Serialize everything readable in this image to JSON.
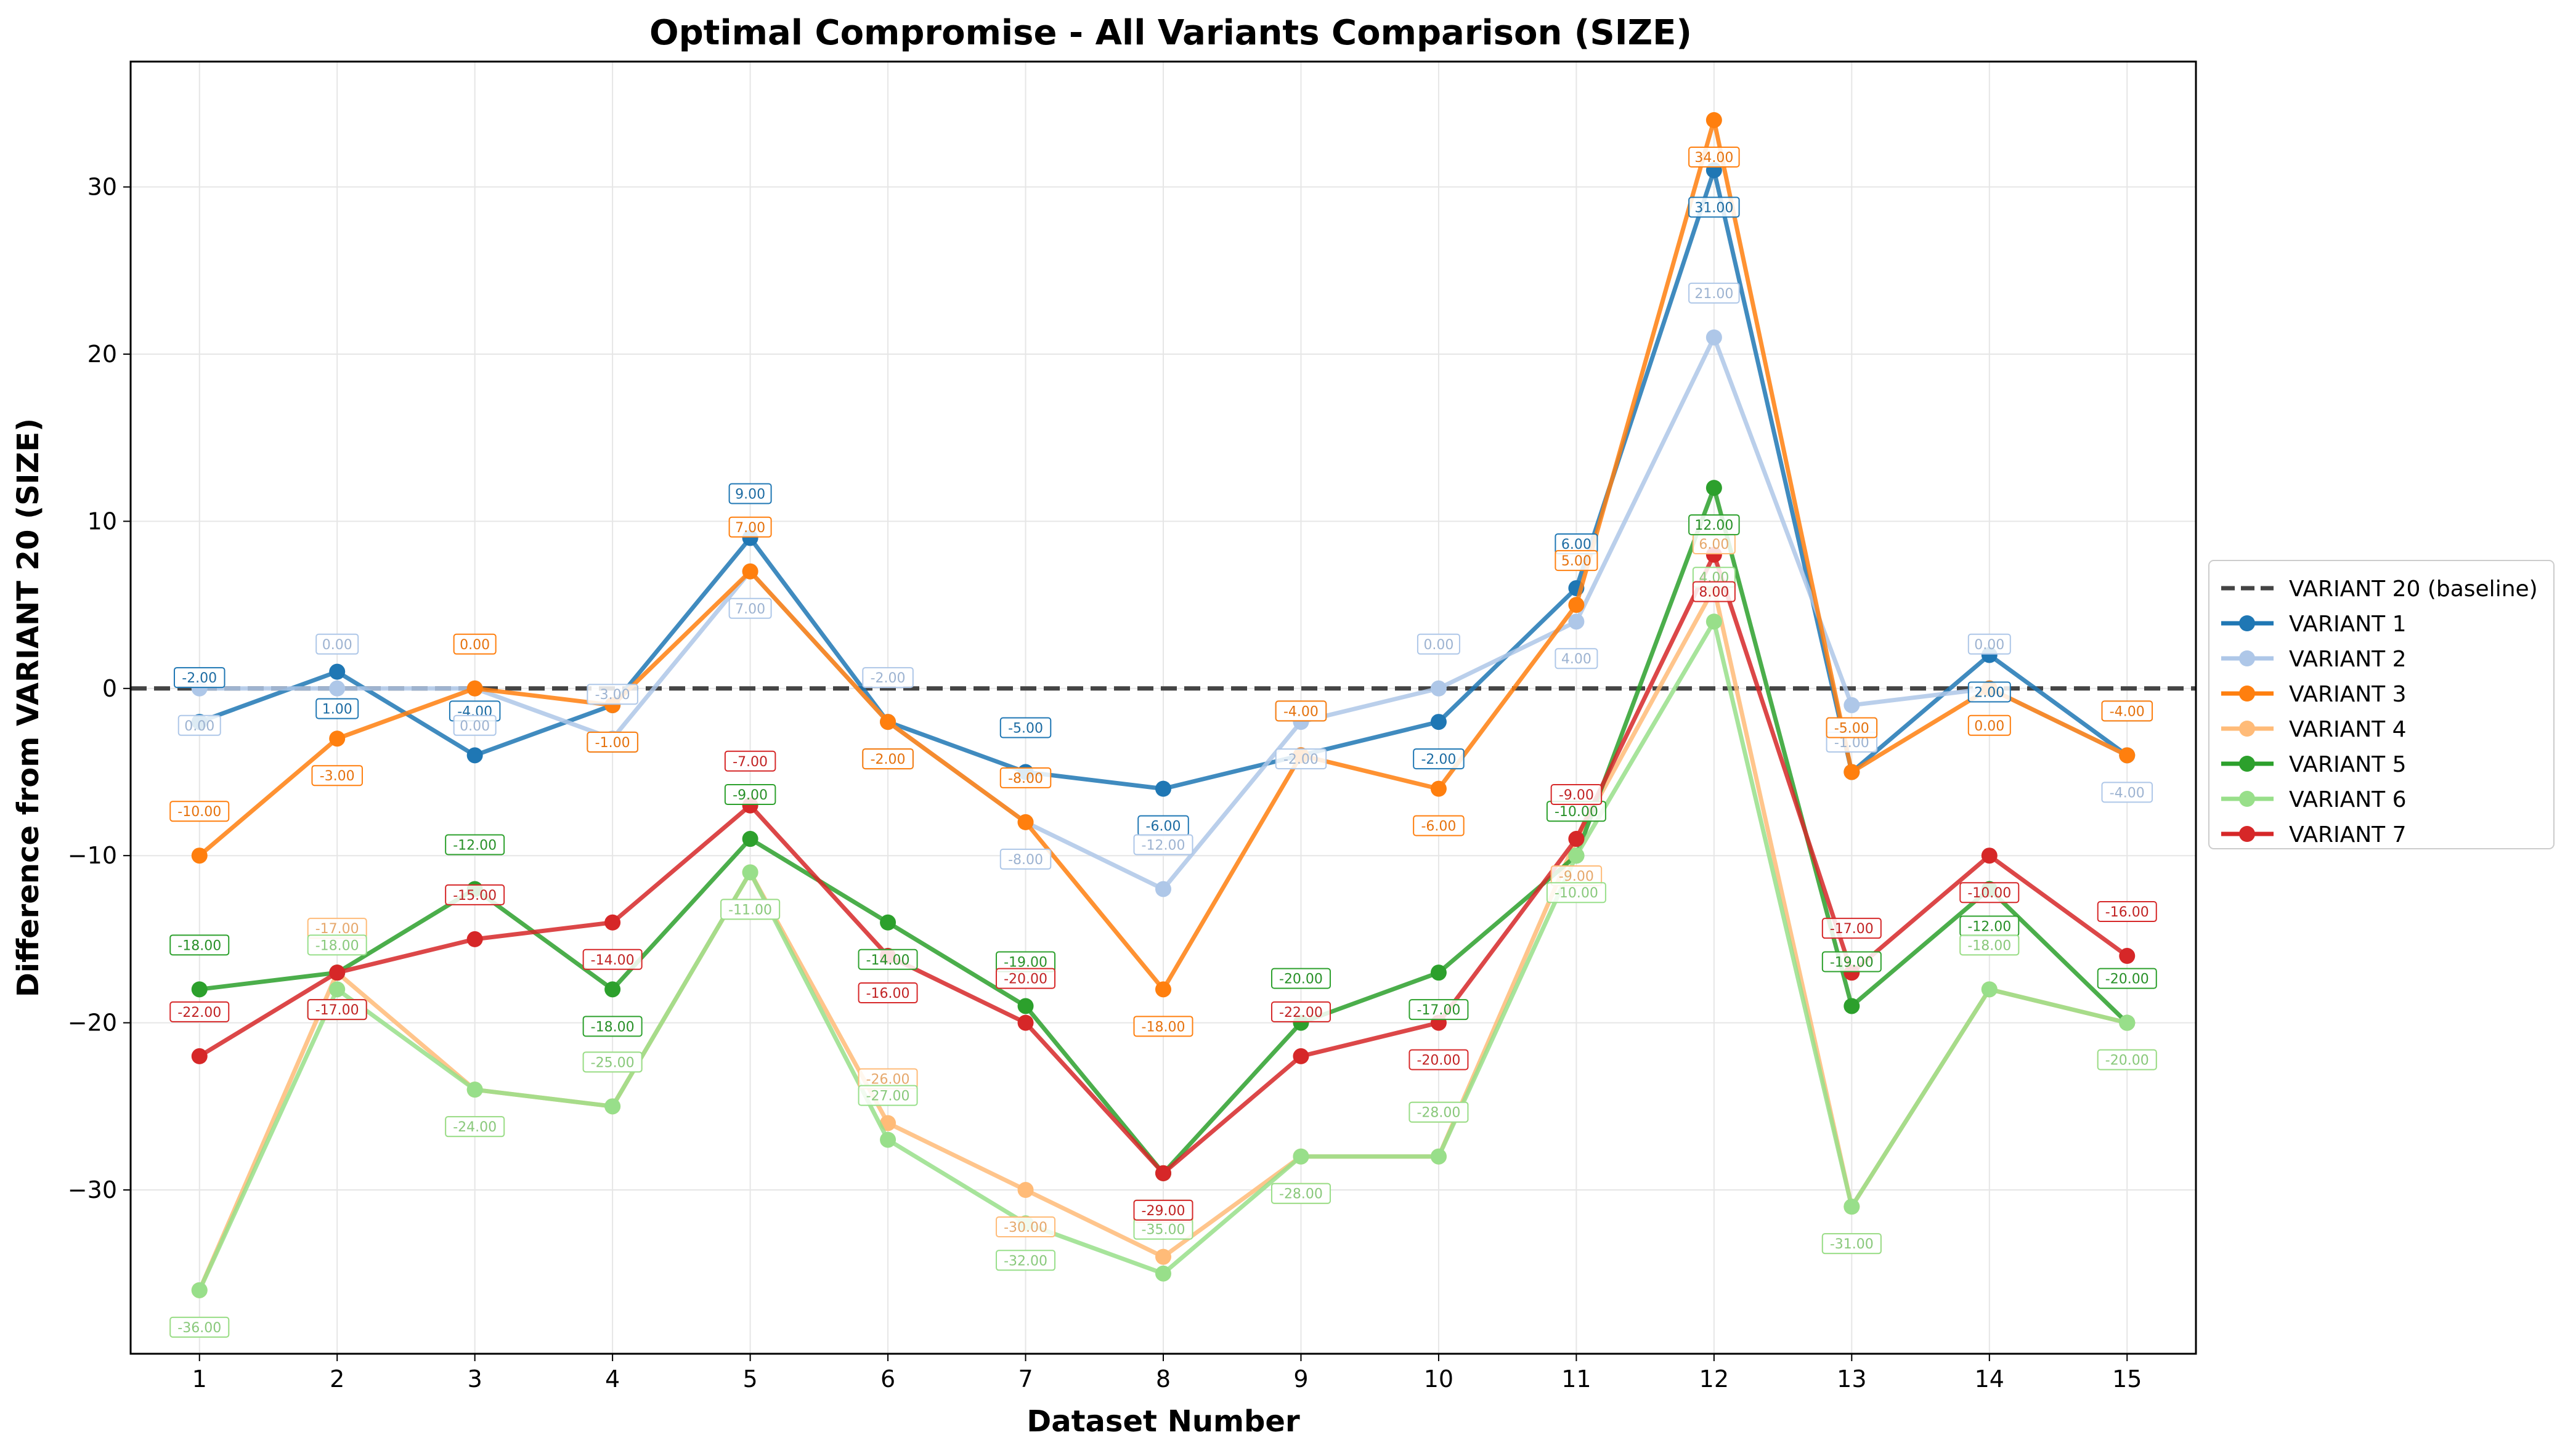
{
  "chart_data": {
    "type": "line",
    "title": "Optimal Compromise - All Variants Comparison (SIZE)",
    "xlabel": "Dataset Number",
    "ylabel": "Difference from VARIANT 20 (SIZE)",
    "x": [
      1,
      2,
      3,
      4,
      5,
      6,
      7,
      8,
      9,
      10,
      11,
      12,
      13,
      14,
      15
    ],
    "xlim": [
      0.5,
      15.5
    ],
    "ylim": [
      -39.8,
      37.5
    ],
    "yticks": [
      -30,
      -20,
      -10,
      0,
      10,
      20,
      30
    ],
    "ytick_labels": [
      "−30",
      "−20",
      "−10",
      "0",
      "10",
      "20",
      "30"
    ],
    "grid": true,
    "legend_position": "outside-right",
    "baseline": {
      "name": "VARIANT 20 (baseline)",
      "value": 0,
      "color": "#444444",
      "style": "dashed"
    },
    "series": [
      {
        "name": "VARIANT 1",
        "color": "#1f77b4",
        "values": [
          -2,
          1,
          -4,
          -1,
          9,
          -2,
          -5,
          -6,
          -4,
          -2,
          6,
          31,
          -5,
          2,
          -4
        ]
      },
      {
        "name": "VARIANT 2",
        "color": "#aec7e8",
        "values": [
          0,
          0,
          0,
          -3,
          7,
          -2,
          -8,
          -12,
          -2,
          0,
          4,
          21,
          -1,
          0,
          -4
        ]
      },
      {
        "name": "VARIANT 3",
        "color": "#ff7f0e",
        "values": [
          -10,
          -3,
          0,
          -1,
          7,
          -2,
          -8,
          -18,
          -4,
          -6,
          5,
          34,
          -5,
          0,
          -4
        ]
      },
      {
        "name": "VARIANT 4",
        "color": "#ffbb78",
        "values": [
          -36,
          -17,
          -24,
          -25,
          -11,
          -26,
          -30,
          -34,
          -28,
          -28,
          -9,
          6,
          -31,
          -18,
          -20
        ]
      },
      {
        "name": "VARIANT 5",
        "color": "#2ca02c",
        "values": [
          -18,
          -17,
          -12,
          -18,
          -9,
          -14,
          -19,
          -29,
          -20,
          -17,
          -10,
          12,
          -19,
          -12,
          -20
        ]
      },
      {
        "name": "VARIANT 6",
        "color": "#98df8a",
        "values": [
          -36,
          -18,
          -24,
          -25,
          -11,
          -27,
          -32,
          -35,
          -28,
          -28,
          -10,
          4,
          -31,
          -18,
          -20
        ]
      },
      {
        "name": "VARIANT 7",
        "color": "#d62728",
        "values": [
          -22,
          -17,
          -15,
          -14,
          -7,
          -16,
          -20,
          -29,
          -22,
          -20,
          -9,
          8,
          -17,
          -10,
          -16
        ]
      }
    ]
  }
}
